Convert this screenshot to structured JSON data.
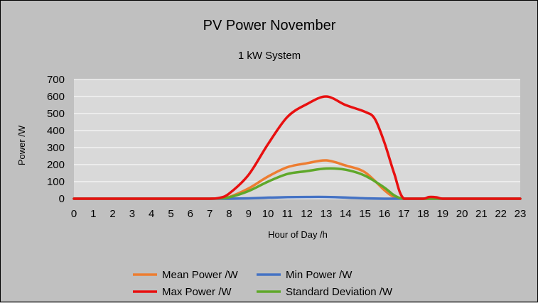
{
  "chart_data": {
    "type": "line",
    "title": "PV Power November",
    "subtitle": "1 kW System",
    "xlabel": "Hour of Day /h",
    "ylabel": "Power /W",
    "xlim": [
      0,
      23
    ],
    "ylim": [
      0,
      700
    ],
    "yticks": [
      0,
      100,
      200,
      300,
      400,
      500,
      600,
      700
    ],
    "xticks": [
      0,
      1,
      2,
      3,
      4,
      5,
      6,
      7,
      8,
      9,
      10,
      11,
      12,
      13,
      14,
      15,
      16,
      17,
      18,
      19,
      20,
      21,
      22,
      23
    ],
    "grid": true,
    "legend_position": "bottom",
    "series": [
      {
        "name": "Mean Power /W",
        "color": "#ed7d31",
        "points": [
          [
            0,
            0
          ],
          [
            1,
            0
          ],
          [
            2,
            0
          ],
          [
            3,
            0
          ],
          [
            4,
            0
          ],
          [
            5,
            0
          ],
          [
            6,
            0
          ],
          [
            7,
            0
          ],
          [
            7.5,
            2
          ],
          [
            8,
            10
          ],
          [
            9,
            60
          ],
          [
            10,
            130
          ],
          [
            11,
            185
          ],
          [
            12,
            208
          ],
          [
            13,
            225
          ],
          [
            14,
            195
          ],
          [
            15,
            155
          ],
          [
            16,
            50
          ],
          [
            16.5,
            10
          ],
          [
            17,
            0
          ],
          [
            18,
            0
          ],
          [
            18.5,
            3
          ],
          [
            19,
            0
          ],
          [
            20,
            0
          ],
          [
            21,
            0
          ],
          [
            22,
            0
          ],
          [
            23,
            0
          ]
        ]
      },
      {
        "name": "Min Power /W",
        "color": "#4472c4",
        "points": [
          [
            0,
            0
          ],
          [
            1,
            0
          ],
          [
            2,
            0
          ],
          [
            3,
            0
          ],
          [
            4,
            0
          ],
          [
            5,
            0
          ],
          [
            6,
            0
          ],
          [
            7,
            0
          ],
          [
            8,
            0
          ],
          [
            9,
            2
          ],
          [
            10,
            6
          ],
          [
            11,
            9
          ],
          [
            12,
            10
          ],
          [
            13,
            10
          ],
          [
            14,
            7
          ],
          [
            15,
            2
          ],
          [
            16,
            0
          ],
          [
            17,
            0
          ],
          [
            18,
            0
          ],
          [
            19,
            0
          ],
          [
            20,
            0
          ],
          [
            21,
            0
          ],
          [
            22,
            0
          ],
          [
            23,
            0
          ]
        ]
      },
      {
        "name": "Max Power /W",
        "color": "#e81010",
        "points": [
          [
            0,
            0
          ],
          [
            1,
            0
          ],
          [
            2,
            0
          ],
          [
            3,
            0
          ],
          [
            4,
            0
          ],
          [
            5,
            0
          ],
          [
            6,
            0
          ],
          [
            7,
            0
          ],
          [
            7.5,
            5
          ],
          [
            8,
            30
          ],
          [
            9,
            140
          ],
          [
            10,
            320
          ],
          [
            11,
            480
          ],
          [
            12,
            555
          ],
          [
            13,
            600
          ],
          [
            14,
            550
          ],
          [
            15,
            510
          ],
          [
            15.5,
            470
          ],
          [
            16,
            330
          ],
          [
            16.5,
            150
          ],
          [
            17,
            0
          ],
          [
            18,
            0
          ],
          [
            18.3,
            10
          ],
          [
            18.7,
            8
          ],
          [
            19,
            0
          ],
          [
            20,
            0
          ],
          [
            21,
            0
          ],
          [
            22,
            0
          ],
          [
            23,
            0
          ]
        ]
      },
      {
        "name": "Standard Deviation /W",
        "color": "#5fa82a",
        "points": [
          [
            0,
            0
          ],
          [
            1,
            0
          ],
          [
            2,
            0
          ],
          [
            3,
            0
          ],
          [
            4,
            0
          ],
          [
            5,
            0
          ],
          [
            6,
            0
          ],
          [
            7,
            0
          ],
          [
            7.5,
            2
          ],
          [
            8,
            8
          ],
          [
            9,
            45
          ],
          [
            10,
            100
          ],
          [
            11,
            145
          ],
          [
            12,
            162
          ],
          [
            13,
            177
          ],
          [
            14,
            170
          ],
          [
            15,
            135
          ],
          [
            16,
            65
          ],
          [
            16.5,
            20
          ],
          [
            17,
            0
          ],
          [
            18,
            0
          ],
          [
            19,
            0
          ],
          [
            20,
            0
          ],
          [
            21,
            0
          ],
          [
            22,
            0
          ],
          [
            23,
            0
          ]
        ]
      }
    ]
  }
}
